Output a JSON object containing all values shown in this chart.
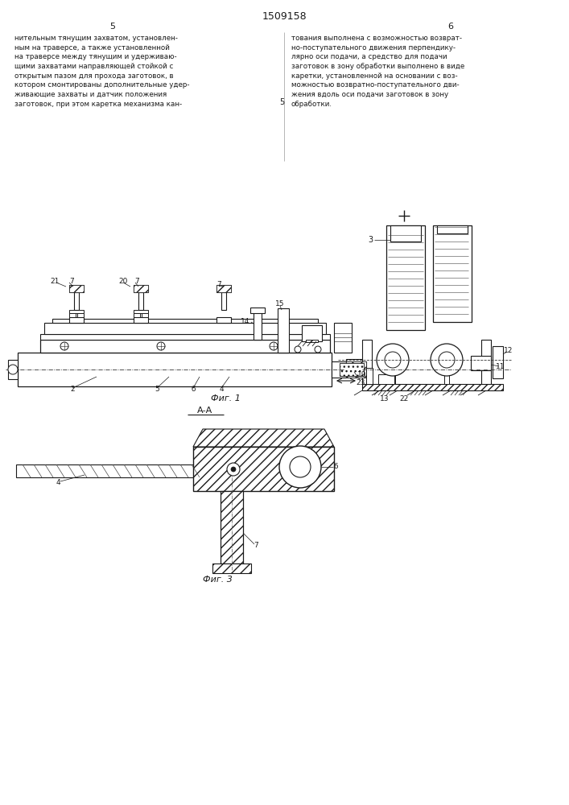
{
  "title": "1509158",
  "bg_color": "#ffffff",
  "line_color": "#1a1a1a",
  "text_color": "#1a1a1a",
  "text_left": "нительным тянущим захватом, установлен-\nным на траверсе, а также установленной\nна траверсе между тянущим и удерживаю-\nщими захватами направляющей стойкой с\nоткрытым пазом для прохода заготовок, в\nкотором смонтированы дополнительные удер-\nживающие захваты и датчик положения\nзаготовок, при этом каретка механизма кан-",
  "text_right": "тования выполнена с возможностью возврат-\nно-поступательного движения перпендику-\nлярно оси подачи, а средство для подачи\nзаготовок в зону обработки выполнено в виде\nкаретки, установленной на основании с воз-\nможностью возвратно-поступательного дви-\nжения вдоль оси подачи заготовок в зону\nобработки.",
  "fig1_label": "Фиг. 1",
  "fig3_label": "Фиг. 3",
  "section_label": "А-А"
}
